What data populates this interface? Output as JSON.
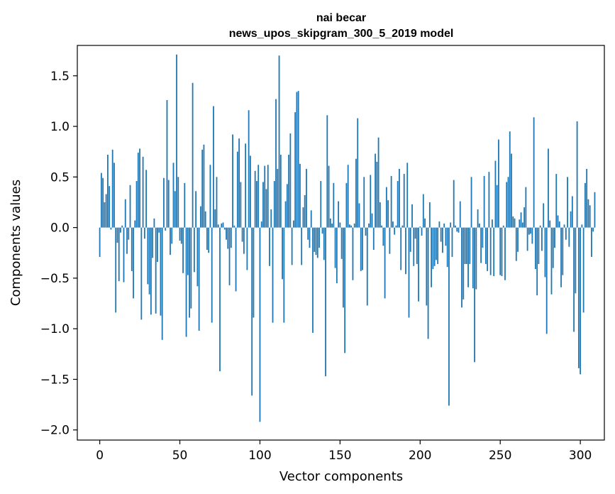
{
  "chart_data": {
    "type": "bar",
    "title": [
      "nai becar",
      "news_upos_skipgram_300_5_2019 model"
    ],
    "xlabel": "Vector components",
    "ylabel": "Components values",
    "xlim": [
      -14,
      315
    ],
    "ylim": [
      -2.1,
      1.8
    ],
    "xticks": [
      0,
      50,
      100,
      150,
      200,
      250,
      300
    ],
    "xtick_labels": [
      "0",
      "50",
      "100",
      "150",
      "200",
      "250",
      "300"
    ],
    "yticks": [
      -2.0,
      -1.5,
      -1.0,
      -0.5,
      0.0,
      0.5,
      1.0,
      1.5
    ],
    "ytick_labels": [
      "−2.0",
      "−1.5",
      "−1.0",
      "−0.5",
      "0.0",
      "0.5",
      "1.0",
      "1.5"
    ],
    "grid": false,
    "bar_color": "#1f77b4",
    "values": [
      -0.29,
      0.54,
      0.49,
      0.25,
      0.33,
      0.72,
      0.41,
      -0.02,
      0.77,
      0.64,
      -0.84,
      -0.15,
      -0.53,
      -0.05,
      0.02,
      -0.54,
      0.28,
      -0.26,
      -0.12,
      0.42,
      -0.43,
      -0.7,
      0.07,
      0.46,
      0.74,
      0.78,
      -0.91,
      0.7,
      -0.11,
      0.57,
      -0.56,
      -0.66,
      -0.86,
      -0.3,
      0.09,
      -0.85,
      -0.34,
      -0.05,
      -0.87,
      -1.11,
      0.49,
      -0.03,
      1.26,
      0.47,
      -0.27,
      -0.16,
      0.64,
      0.36,
      1.71,
      0.5,
      -0.13,
      -0.16,
      -0.45,
      0.44,
      -1.08,
      -0.47,
      -0.89,
      -0.8,
      1.43,
      -0.44,
      0.36,
      -0.58,
      -1.02,
      0.21,
      0.77,
      0.82,
      0.16,
      -0.22,
      -0.25,
      0.62,
      -0.94,
      1.2,
      0.18,
      0.5,
      0.03,
      -1.42,
      0.04,
      0.05,
      -0.02,
      -0.12,
      -0.21,
      -0.57,
      -0.2,
      0.92,
      0.02,
      -0.63,
      0.75,
      0.88,
      0.45,
      -0.14,
      -0.26,
      0.83,
      -0.42,
      1.16,
      0.71,
      -1.66,
      -0.89,
      0.56,
      0.46,
      0.62,
      -1.92,
      0.06,
      0.45,
      0.61,
      0.38,
      0.62,
      -0.38,
      0.18,
      -0.94,
      0.46,
      1.27,
      0.58,
      1.7,
      0.72,
      -0.51,
      -0.94,
      0.26,
      0.43,
      0.72,
      0.93,
      -0.37,
      0.07,
      1.14,
      1.34,
      1.35,
      0.63,
      -0.37,
      0.2,
      0.32,
      0.58,
      -0.12,
      -0.2,
      0.17,
      -1.04,
      -0.24,
      -0.27,
      -0.3,
      -0.2,
      0.46,
      -0.06,
      -0.32,
      -1.47,
      1.11,
      0.61,
      0.09,
      0.04,
      0.44,
      -0.4,
      -0.55,
      0.26,
      0.05,
      -0.31,
      -0.79,
      -1.24,
      0.44,
      0.62,
      0.03,
      0.02,
      -0.52,
      0.04,
      0.68,
      1.08,
      0.24,
      -0.43,
      -0.42,
      0.5,
      -0.08,
      -0.77,
      0.04,
      0.52,
      0.14,
      -0.22,
      0.73,
      0.65,
      0.89,
      0.25,
      0.02,
      -0.18,
      -0.7,
      0.4,
      0.27,
      -0.26,
      0.51,
      0.06,
      -0.07,
      0.02,
      0.46,
      0.58,
      -0.42,
      0.02,
      0.53,
      -0.46,
      0.64,
      -0.89,
      -0.24,
      0.23,
      -0.38,
      -0.11,
      -0.36,
      -0.73,
      0.01,
      -0.08,
      0.33,
      0.09,
      -0.77,
      -1.1,
      0.25,
      -0.59,
      -0.41,
      -0.38,
      -0.32,
      -0.36,
      0.06,
      -0.14,
      -0.25,
      0.04,
      -0.18,
      -0.39,
      -1.76,
      0.05,
      -0.29,
      0.47,
      0.02,
      -0.04,
      -0.05,
      0.26,
      -0.79,
      -0.71,
      -0.36,
      -0.36,
      -0.59,
      -0.36,
      0.5,
      -0.6,
      -1.33,
      -0.61,
      0.18,
      0.04,
      -0.35,
      -0.2,
      0.51,
      -0.36,
      -0.43,
      0.55,
      -0.47,
      0.08,
      -0.48,
      0.66,
      0.42,
      0.87,
      -0.47,
      -0.48,
      0.02,
      -0.52,
      0.45,
      0.5,
      0.95,
      0.73,
      0.11,
      0.09,
      -0.33,
      -0.24,
      0.08,
      0.15,
      0.05,
      0.2,
      0.4,
      -0.23,
      -0.07,
      -0.06,
      -0.16,
      1.09,
      -0.41,
      -0.67,
      -0.36,
      0.02,
      -0.23,
      0.24,
      -0.49,
      -1.05,
      0.78,
      0.07,
      -0.66,
      -0.4,
      -0.2,
      0.53,
      0.12,
      0.06,
      -0.59,
      -0.47,
      0.03,
      -0.12,
      0.5,
      -0.19,
      0.16,
      0.31,
      -1.03,
      -0.65,
      1.05,
      -1.39,
      -1.45,
      0.03,
      -0.84,
      0.44,
      0.58,
      0.28,
      0.22,
      -0.29,
      -0.04,
      0.35
    ]
  }
}
